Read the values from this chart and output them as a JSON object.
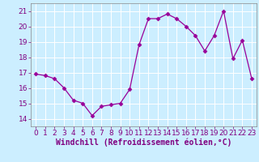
{
  "x": [
    0,
    1,
    2,
    3,
    4,
    5,
    6,
    7,
    8,
    9,
    10,
    11,
    12,
    13,
    14,
    15,
    16,
    17,
    18,
    19,
    20,
    21,
    22,
    23
  ],
  "y": [
    16.9,
    16.8,
    16.6,
    16.0,
    15.2,
    15.0,
    14.2,
    14.8,
    14.9,
    15.0,
    15.9,
    18.8,
    20.5,
    20.5,
    20.8,
    20.5,
    20.0,
    19.4,
    18.4,
    19.4,
    21.0,
    17.9,
    19.1,
    16.6
  ],
  "line_color": "#990099",
  "marker": "D",
  "marker_size": 2.5,
  "bg_color": "#cceeff",
  "grid_color": "#ffffff",
  "xlabel": "Windchill (Refroidissement éolien,°C)",
  "xlabel_color": "#800080",
  "xlabel_fontsize": 7,
  "tick_fontsize": 6.5,
  "tick_color": "#800080",
  "ylim": [
    13.5,
    21.5
  ],
  "xlim": [
    -0.5,
    23.5
  ],
  "yticks": [
    14,
    15,
    16,
    17,
    18,
    19,
    20,
    21
  ],
  "xticks": [
    0,
    1,
    2,
    3,
    4,
    5,
    6,
    7,
    8,
    9,
    10,
    11,
    12,
    13,
    14,
    15,
    16,
    17,
    18,
    19,
    20,
    21,
    22,
    23
  ]
}
